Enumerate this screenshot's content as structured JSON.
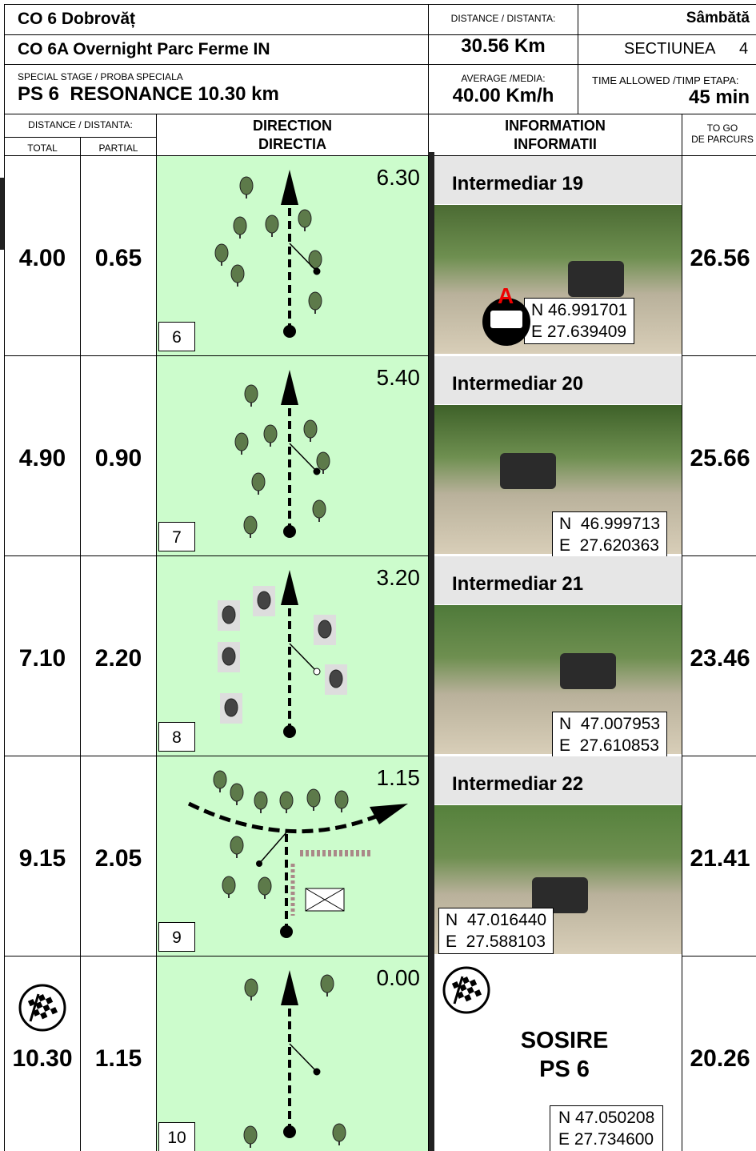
{
  "header": {
    "co": "CO 6 Dobrovăț",
    "co_sub": "CO 6A Overnight Parc Ferme IN",
    "stage_label": "SPECIAL STAGE / PROBA SPECIALA",
    "stage": "PS 6  RESONANCE 10.30 km",
    "distance_label": "DISTANCE / DISTANTA:",
    "distance": "30.56 Km",
    "average_label": "AVERAGE /MEDIA:",
    "average": "40.00 Km/h",
    "day": "Sâmbătă",
    "section": "SECTIUNEA",
    "section_no": "4",
    "time_label": "TIME ALLOWED /TIMP ETAPA:",
    "time": "45 min"
  },
  "columns": {
    "distance": "DISTANCE / DISTANTA:",
    "total": "TOTAL",
    "partial": "PARTIAL",
    "direction": [
      "DIRECTION",
      "DIRECTIA"
    ],
    "information": [
      "INFORMATION",
      "INFORMATII"
    ],
    "to_go": [
      "TO GO",
      "DE PARCURS"
    ]
  },
  "rows": [
    {
      "total": "4.00",
      "partial": "0.65",
      "cap": "6.30",
      "box": "6",
      "info": "Intermediar 19",
      "marker": "A",
      "coords": [
        "N 46.991701",
        "E 27.639409"
      ],
      "to_go": "26.56"
    },
    {
      "total": "4.90",
      "partial": "0.90",
      "cap": "5.40",
      "box": "7",
      "info": "Intermediar 20",
      "coords": [
        "N  46.999713",
        "E  27.620363"
      ],
      "to_go": "25.66"
    },
    {
      "total": "7.10",
      "partial": "2.20",
      "cap": "3.20",
      "box": "8",
      "info": "Intermediar 21",
      "coords": [
        "N  47.007953",
        "E  27.610853"
      ],
      "to_go": "23.46"
    },
    {
      "total": "9.15",
      "partial": "2.05",
      "cap": "1.15",
      "box": "9",
      "info": "Intermediar 22",
      "coords": [
        "N  47.016440",
        "E  27.588103"
      ],
      "to_go": "21.41"
    },
    {
      "total": "10.30",
      "partial": "1.15",
      "cap": "0.00",
      "box": "10",
      "finish": [
        "SOSIRE",
        "PS 6"
      ],
      "coords": [
        "N 47.050208",
        "E 27.734600"
      ],
      "to_go": "20.26"
    }
  ]
}
